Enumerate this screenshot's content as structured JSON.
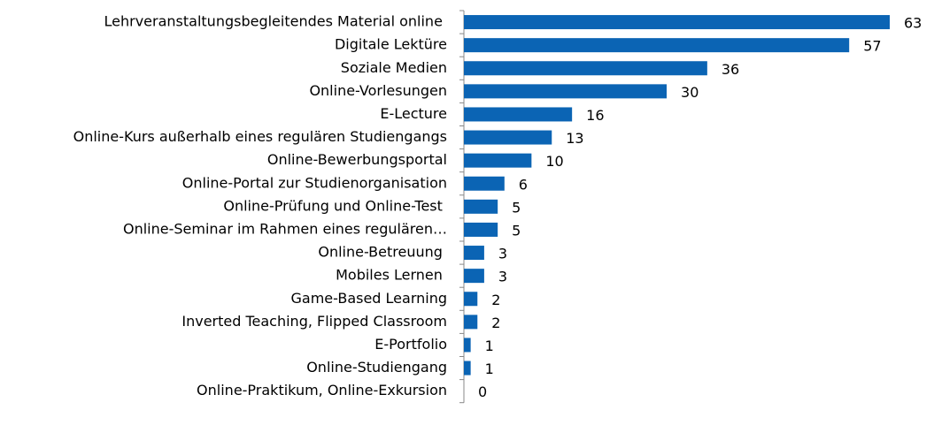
{
  "chart_data": {
    "type": "bar",
    "orientation": "horizontal",
    "categories": [
      "Lehrveranstaltungsbegleitendes Material online ",
      "Digitale Lektüre",
      "Soziale Medien",
      "Online-Vorlesungen",
      "E-Lecture",
      "Online-Kurs außerhalb eines regulären Studiengangs",
      "Online-Bewerbungsportal",
      "Online-Portal zur Studienorganisation",
      "Online-Prüfung und Online-Test ",
      "Online-Seminar im Rahmen eines regulären…",
      "Online-Betreuung ",
      "Mobiles Lernen ",
      "Game-Based Learning",
      "Inverted Teaching, Flipped Classroom",
      "E-Portfolio",
      "Online-Studiengang",
      "Online-Praktikum, Online-Exkursion"
    ],
    "values": [
      63,
      57,
      36,
      30,
      16,
      13,
      10,
      6,
      5,
      5,
      3,
      3,
      2,
      2,
      1,
      1,
      0
    ],
    "color": "#0b64b4",
    "xlim": [
      0,
      63
    ]
  }
}
